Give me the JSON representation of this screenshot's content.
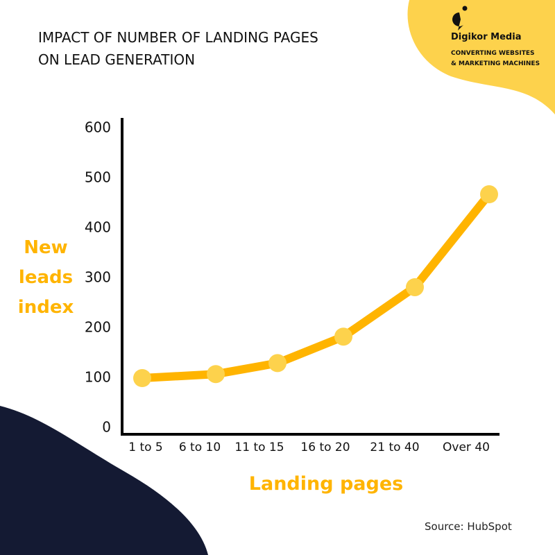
{
  "chart_data": {
    "type": "line",
    "title": "IMPACT OF NUMBER OF LANDING PAGES ON LEAD GENERATION",
    "x_label": "Landing pages",
    "y_label": "New leads index",
    "categories": [
      "1 to 5",
      "6 to 10",
      "11 to 15",
      "16 to 20",
      "21 to 40",
      "Over 40"
    ],
    "series": [
      {
        "name": "New leads index",
        "color": "#ffb400",
        "marker_color": "#fdd24c",
        "values": [
          100,
          108,
          130,
          183,
          282,
          468
        ]
      }
    ],
    "ylim": [
      0,
      600
    ],
    "yticks": [
      0,
      100,
      200,
      300,
      400,
      500,
      600
    ],
    "grid": false
  },
  "brand": {
    "name": "Digikor Media",
    "tagline": "CONVERTING WEBSITES & MARKETING MACHINES"
  },
  "source": "Source: HubSpot"
}
